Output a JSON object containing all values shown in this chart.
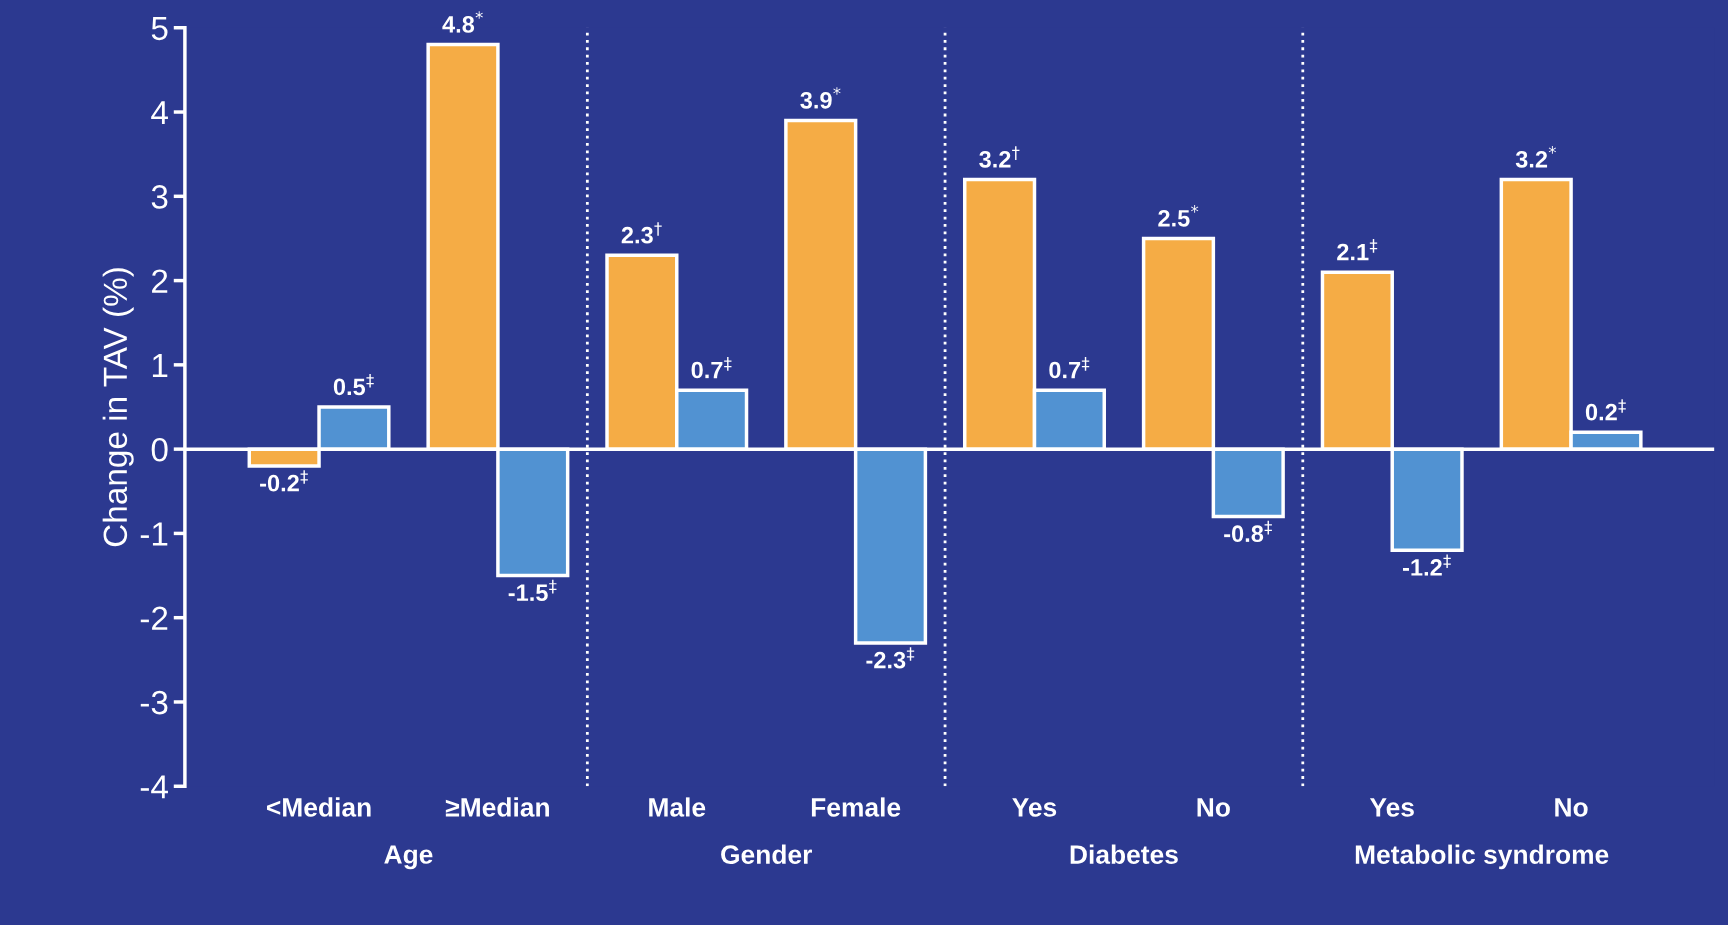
{
  "chart_data": {
    "type": "bar",
    "ylabel": "Change in TAV (%)",
    "categories": [
      "<Median",
      "≥Median",
      "Male",
      "Female",
      "Yes",
      "No",
      "Yes",
      "No"
    ],
    "series": [
      {
        "color": "#f5ac45",
        "values": [
          -0.2,
          4.8,
          2.3,
          3.9,
          3.2,
          2.5,
          2.1,
          3.2
        ],
        "value_labels": [
          "-0.2$^{‡}$",
          "4.8$^{*}$",
          "2.3$^{†}$",
          "3.9$^{*}$",
          "3.2$^{†}$",
          "2.5$^{*}$",
          "2.1$^{‡}$",
          "3.2$^{*}$"
        ]
      },
      {
        "color": "#5192d2",
        "values": [
          0.5,
          -1.5,
          0.7,
          -2.3,
          0.7,
          -0.8,
          -1.2,
          0.2
        ],
        "value_labels": [
          "0.5$^{‡}$",
          "-1.5$^{‡}$",
          "0.7$^{‡}$",
          "-2.3$^{‡}$",
          "0.7$^{‡}$",
          "-0.8$^{‡}$",
          "-1.2$^{‡}$",
          "0.2$^{‡}$"
        ]
      }
    ],
    "ylim": [
      -4,
      5
    ],
    "yticks": [
      -4,
      -3,
      -2,
      -1,
      0,
      1,
      2,
      3,
      4,
      5
    ],
    "annotations": [
      "Age",
      "Gender",
      "Diabetes",
      "Metabolic syndrome"
    ],
    "grid": false,
    "legend": false
  }
}
